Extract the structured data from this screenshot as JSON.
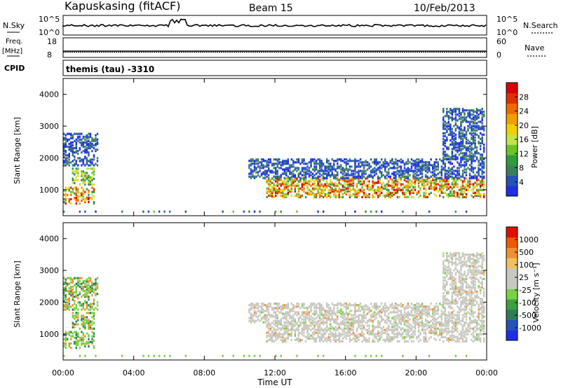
{
  "header": {
    "station": "Kapuskasing (fitACF)",
    "beam": "Beam 15",
    "date": "10/Feb/2013"
  },
  "top_panels": {
    "nsky_label": "N.Sky",
    "nsky_ticks": [
      "10^5",
      "10^0"
    ],
    "nsearch_label": "N.Search",
    "nsearch_ticks": [
      "10^5",
      "10^0"
    ],
    "freq_label": "Freq.",
    "freq_unit": "[MHz]",
    "freq_ticks": [
      "18",
      "8"
    ],
    "nave_label": "Nave",
    "nave_ticks": [
      "60",
      "0"
    ],
    "cpid_label": "CPID",
    "cpid_text": "themis (tau) -3310"
  },
  "chart_data": [
    {
      "type": "heatmap",
      "name": "power",
      "ylabel": "Slant Range [km]",
      "yticks": [
        "4000",
        "3000",
        "2000",
        "1000"
      ],
      "ylim": [
        180,
        4500
      ],
      "xlim": [
        0,
        24
      ],
      "colorbar": {
        "label": "Power [dB]",
        "ticks": [
          "28",
          "24",
          "20",
          "16",
          "12",
          "8",
          "4"
        ],
        "colors": [
          "#1e2ee6",
          "#2453b8",
          "#3a7f5c",
          "#2f9a3c",
          "#6ac428",
          "#c6e24a",
          "#f0d000",
          "#f0a000",
          "#ef6a00",
          "#e03000",
          "#d80000"
        ]
      },
      "echo_regions": [
        {
          "t0": 0.0,
          "t1": 1.8,
          "r0": 600,
          "r1": 1100,
          "level": "high"
        },
        {
          "t0": 0.5,
          "t1": 1.8,
          "r0": 1200,
          "r1": 1700,
          "level": "mid"
        },
        {
          "t0": 0.0,
          "t1": 2.0,
          "r0": 1800,
          "r1": 2800,
          "level": "low"
        },
        {
          "t0": 11.5,
          "t1": 23.9,
          "r0": 800,
          "r1": 1400,
          "level": "high"
        },
        {
          "t0": 10.5,
          "t1": 23.9,
          "r0": 1400,
          "r1": 2000,
          "level": "low"
        },
        {
          "t0": 21.5,
          "t1": 23.9,
          "r0": 2000,
          "r1": 3600,
          "level": "low"
        }
      ]
    },
    {
      "type": "heatmap",
      "name": "velocity",
      "ylabel": "Slant Range [km]",
      "yticks": [
        "4000",
        "3000",
        "2000",
        "1000"
      ],
      "ylim": [
        180,
        4500
      ],
      "xlim": [
        0,
        24
      ],
      "xticks": [
        "00:00",
        "04:00",
        "08:00",
        "12:00",
        "16:00",
        "20:00",
        "00:00"
      ],
      "xlabel": "Time UT",
      "colorbar": {
        "label": "Velocity [m s⁻¹]",
        "ticks": [
          "1000",
          "500",
          "100",
          "25",
          "-25",
          "-100",
          "-500",
          "-1000"
        ],
        "colors": [
          "#1e2ee6",
          "#2453b8",
          "#2f7a58",
          "#3aa040",
          "#7ad040",
          "#c8c8c0",
          "#c8c8c0",
          "#f0c060",
          "#f09030",
          "#ef5a00",
          "#e01000"
        ]
      }
    }
  ]
}
